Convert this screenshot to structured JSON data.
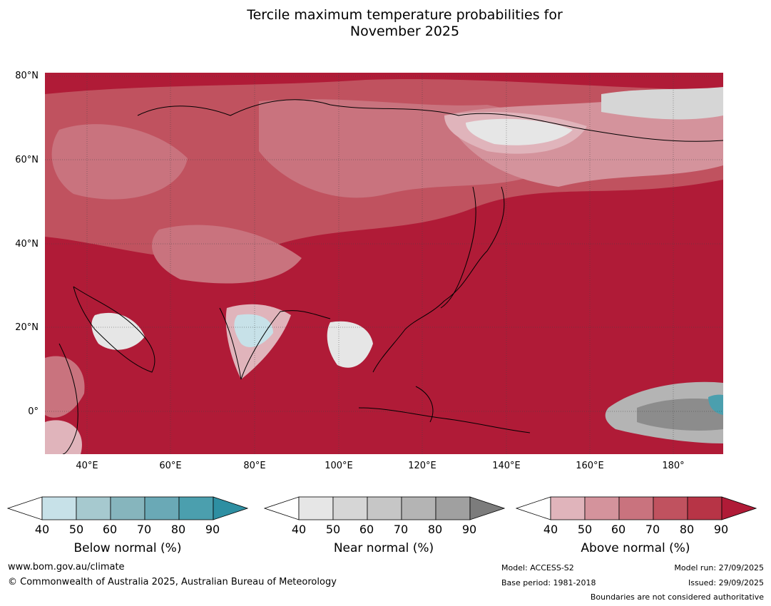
{
  "title_line1": "Tercile maximum temperature probabilities for",
  "title_line2": "November 2025",
  "lat_labels": [
    "80°N",
    "60°N",
    "40°N",
    "20°N",
    "0°"
  ],
  "lon_labels": [
    "40°E",
    "60°E",
    "80°E",
    "100°E",
    "120°E",
    "140°E",
    "160°E",
    "180°"
  ],
  "colorbars": [
    {
      "label": "Below normal (%)",
      "ticks": [
        "40",
        "50",
        "60",
        "70",
        "80",
        "90"
      ],
      "colors": [
        "#c7e1e8",
        "#a6c9cf",
        "#86b5bd",
        "#6aa9b6",
        "#4b9fae",
        "#2e8fa2"
      ]
    },
    {
      "label": "Near normal (%)",
      "ticks": [
        "40",
        "50",
        "60",
        "70",
        "80",
        "90"
      ],
      "colors": [
        "#e6e6e6",
        "#d6d6d6",
        "#c6c6c6",
        "#b4b4b4",
        "#a0a0a0",
        "#7c7c7c"
      ]
    },
    {
      "label": "Above normal (%)",
      "ticks": [
        "40",
        "50",
        "60",
        "70",
        "80",
        "90"
      ],
      "colors": [
        "#e0b4bb",
        "#d4939c",
        "#c9737e",
        "#c0525f",
        "#b73446",
        "#b01b37"
      ]
    }
  ],
  "footer": {
    "website": "www.bom.gov.au/climate",
    "copyright": "© Commonwealth of Australia 2025, Australian Bureau of Meteorology",
    "model": "Model: ACCESS-S2",
    "base_period": "Base period: 1981-2018",
    "model_run": "Model run: 27/09/2025",
    "issued": "Issued: 29/09/2025",
    "disclaimer": "Boundaries are not considered authoritative"
  }
}
